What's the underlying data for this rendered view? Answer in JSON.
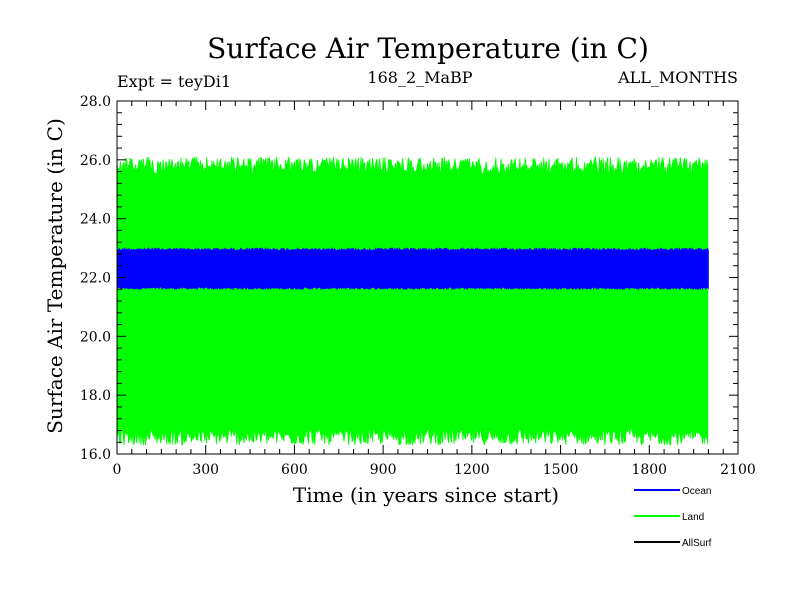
{
  "chart_data": {
    "type": "line",
    "title": "Surface Air Temperature (in C)",
    "header_left": "Expt = teyDi1",
    "header_center": "168_2_MaBP",
    "header_right": "ALL_MONTHS",
    "xlabel": "Time (in years since start)",
    "ylabel": "Surface Air Temperature (in C)",
    "xlim": [
      0,
      2100
    ],
    "ylim": [
      16.0,
      28.0
    ],
    "x_ticks": [
      "0",
      "300",
      "600",
      "900",
      "1200",
      "1500",
      "1800",
      "2100"
    ],
    "y_ticks": [
      "16.0",
      "18.0",
      "20.0",
      "22.0",
      "24.0",
      "26.0",
      "28.0"
    ],
    "x_range_data": [
      0,
      2000
    ],
    "series": [
      {
        "name": "Ocean",
        "color": "#0000ff",
        "mean": 22.25,
        "min": 21.6,
        "max": 23.0
      },
      {
        "name": "Land",
        "color": "#00ff00",
        "mean": 21.2,
        "min": 16.3,
        "max": 26.1
      },
      {
        "name": "AllSurf",
        "color": "#000000",
        "mean": null,
        "min": null,
        "max": null
      }
    ],
    "legend_position": "bottom-right"
  }
}
